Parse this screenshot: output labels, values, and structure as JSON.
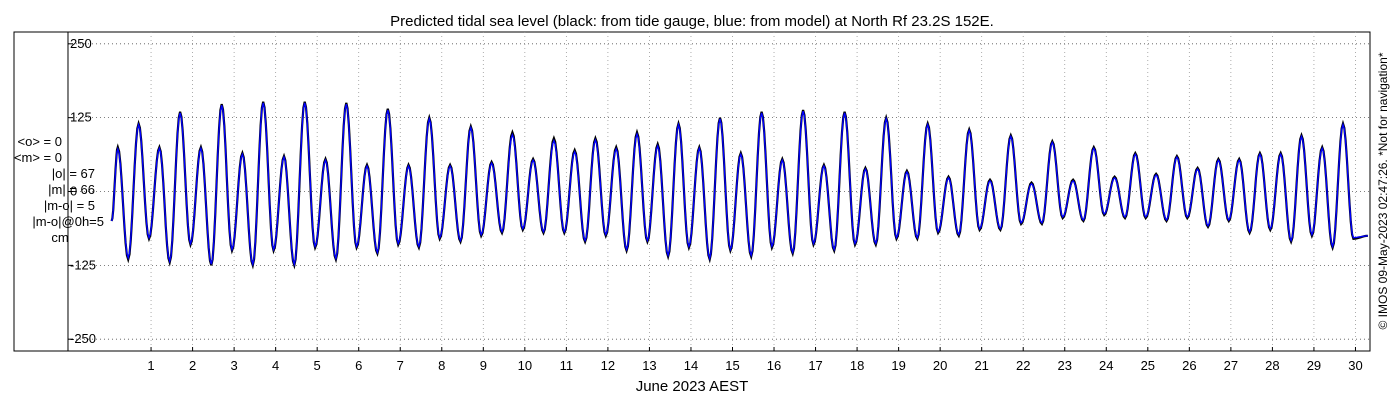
{
  "chart_data": {
    "type": "line",
    "title": "Predicted tidal sea level (black: from tide gauge, blue: from model) at North Rf 23.2S 152E.",
    "xlabel": "June 2023 AEST",
    "ylabel": "",
    "x_ticks": [
      1,
      2,
      3,
      4,
      5,
      6,
      7,
      8,
      9,
      10,
      11,
      12,
      13,
      14,
      15,
      16,
      17,
      18,
      19,
      20,
      21,
      22,
      23,
      24,
      25,
      26,
      27,
      28,
      29,
      30
    ],
    "xlim": [
      -2.3,
      30.35
    ],
    "y_ticks": [
      250,
      125,
      0,
      -125,
      -250
    ],
    "ylim": [
      -270,
      270
    ],
    "grid": "dotted",
    "series": [
      {
        "name": "black: from tide gauge",
        "color": "#000000",
        "extrema": [
          [
            0.2,
            75
          ],
          [
            0.45,
            -115
          ],
          [
            0.7,
            115
          ],
          [
            0.95,
            -80
          ],
          [
            1.2,
            75
          ],
          [
            1.45,
            -120
          ],
          [
            1.7,
            135
          ],
          [
            1.95,
            -90
          ],
          [
            2.2,
            75
          ],
          [
            2.45,
            -125
          ],
          [
            2.7,
            148
          ],
          [
            2.95,
            -100
          ],
          [
            3.2,
            65
          ],
          [
            3.45,
            -125
          ],
          [
            3.7,
            152
          ],
          [
            3.95,
            -100
          ],
          [
            4.2,
            60
          ],
          [
            4.45,
            -125
          ],
          [
            4.7,
            152
          ],
          [
            4.95,
            -95
          ],
          [
            5.2,
            55
          ],
          [
            5.45,
            -115
          ],
          [
            5.7,
            150
          ],
          [
            5.95,
            -95
          ],
          [
            6.2,
            45
          ],
          [
            6.45,
            -105
          ],
          [
            6.7,
            140
          ],
          [
            6.95,
            -90
          ],
          [
            7.2,
            45
          ],
          [
            7.45,
            -95
          ],
          [
            7.7,
            125
          ],
          [
            7.95,
            -80
          ],
          [
            8.2,
            45
          ],
          [
            8.45,
            -85
          ],
          [
            8.7,
            110
          ],
          [
            8.95,
            -75
          ],
          [
            9.2,
            50
          ],
          [
            9.45,
            -70
          ],
          [
            9.7,
            100
          ],
          [
            9.95,
            -65
          ],
          [
            10.2,
            55
          ],
          [
            10.45,
            -70
          ],
          [
            10.7,
            90
          ],
          [
            10.95,
            -70
          ],
          [
            11.2,
            70
          ],
          [
            11.45,
            -85
          ],
          [
            11.7,
            90
          ],
          [
            11.95,
            -75
          ],
          [
            12.2,
            75
          ],
          [
            12.45,
            -100
          ],
          [
            12.7,
            100
          ],
          [
            12.95,
            -85
          ],
          [
            13.2,
            80
          ],
          [
            13.45,
            -110
          ],
          [
            13.7,
            115
          ],
          [
            13.95,
            -95
          ],
          [
            14.2,
            75
          ],
          [
            14.45,
            -115
          ],
          [
            14.7,
            125
          ],
          [
            14.95,
            -100
          ],
          [
            15.2,
            65
          ],
          [
            15.45,
            -110
          ],
          [
            15.7,
            135
          ],
          [
            15.95,
            -95
          ],
          [
            16.2,
            55
          ],
          [
            16.45,
            -105
          ],
          [
            16.7,
            138
          ],
          [
            16.95,
            -90
          ],
          [
            17.2,
            45
          ],
          [
            17.45,
            -100
          ],
          [
            17.7,
            135
          ],
          [
            17.95,
            -90
          ],
          [
            18.2,
            40
          ],
          [
            18.45,
            -90
          ],
          [
            18.7,
            125
          ],
          [
            18.95,
            -80
          ],
          [
            19.2,
            35
          ],
          [
            19.45,
            -80
          ],
          [
            19.7,
            115
          ],
          [
            19.95,
            -70
          ],
          [
            20.2,
            25
          ],
          [
            20.45,
            -75
          ],
          [
            20.7,
            105
          ],
          [
            20.95,
            -65
          ],
          [
            21.2,
            20
          ],
          [
            21.45,
            -65
          ],
          [
            21.7,
            95
          ],
          [
            21.95,
            -55
          ],
          [
            22.2,
            15
          ],
          [
            22.45,
            -55
          ],
          [
            22.7,
            85
          ],
          [
            22.95,
            -45
          ],
          [
            23.2,
            20
          ],
          [
            23.45,
            -50
          ],
          [
            23.7,
            75
          ],
          [
            23.95,
            -40
          ],
          [
            24.2,
            25
          ],
          [
            24.45,
            -45
          ],
          [
            24.7,
            65
          ],
          [
            24.95,
            -45
          ],
          [
            25.2,
            30
          ],
          [
            25.45,
            -50
          ],
          [
            25.7,
            60
          ],
          [
            25.95,
            -45
          ],
          [
            26.2,
            40
          ],
          [
            26.45,
            -60
          ],
          [
            26.7,
            55
          ],
          [
            26.95,
            -50
          ],
          [
            27.2,
            55
          ],
          [
            27.45,
            -70
          ],
          [
            27.7,
            65
          ],
          [
            27.95,
            -65
          ],
          [
            28.2,
            65
          ],
          [
            28.45,
            -85
          ],
          [
            28.7,
            95
          ],
          [
            28.95,
            -75
          ],
          [
            29.2,
            75
          ],
          [
            29.45,
            -95
          ],
          [
            29.7,
            115
          ],
          [
            29.95,
            -80
          ]
        ]
      },
      {
        "name": "blue: from model",
        "color": "#0000ff",
        "extrema": [
          [
            0.2,
            72
          ],
          [
            0.45,
            -112
          ],
          [
            0.7,
            113
          ],
          [
            0.95,
            -78
          ],
          [
            1.2,
            73
          ],
          [
            1.45,
            -118
          ],
          [
            1.7,
            133
          ],
          [
            1.95,
            -88
          ],
          [
            2.2,
            73
          ],
          [
            2.45,
            -123
          ],
          [
            2.7,
            146
          ],
          [
            2.95,
            -98
          ],
          [
            3.2,
            63
          ],
          [
            3.45,
            -123
          ],
          [
            3.7,
            150
          ],
          [
            3.95,
            -98
          ],
          [
            4.2,
            58
          ],
          [
            4.45,
            -123
          ],
          [
            4.7,
            150
          ],
          [
            4.95,
            -93
          ],
          [
            5.2,
            53
          ],
          [
            5.45,
            -113
          ],
          [
            5.7,
            148
          ],
          [
            5.95,
            -93
          ],
          [
            6.2,
            43
          ],
          [
            6.45,
            -103
          ],
          [
            6.7,
            138
          ],
          [
            6.95,
            -88
          ],
          [
            7.2,
            43
          ],
          [
            7.45,
            -93
          ],
          [
            7.7,
            123
          ],
          [
            7.95,
            -78
          ],
          [
            8.2,
            43
          ],
          [
            8.45,
            -83
          ],
          [
            8.7,
            108
          ],
          [
            8.95,
            -73
          ],
          [
            9.2,
            48
          ],
          [
            9.45,
            -68
          ],
          [
            9.7,
            96
          ],
          [
            9.95,
            -63
          ],
          [
            10.2,
            53
          ],
          [
            10.45,
            -68
          ],
          [
            10.7,
            86
          ],
          [
            10.95,
            -68
          ],
          [
            11.2,
            67
          ],
          [
            11.45,
            -83
          ],
          [
            11.7,
            87
          ],
          [
            11.95,
            -73
          ],
          [
            12.2,
            72
          ],
          [
            12.45,
            -98
          ],
          [
            12.7,
            97
          ],
          [
            12.95,
            -83
          ],
          [
            13.2,
            77
          ],
          [
            13.45,
            -108
          ],
          [
            13.7,
            113
          ],
          [
            13.95,
            -93
          ],
          [
            14.2,
            73
          ],
          [
            14.45,
            -113
          ],
          [
            14.7,
            123
          ],
          [
            14.95,
            -98
          ],
          [
            15.2,
            63
          ],
          [
            15.45,
            -108
          ],
          [
            15.7,
            133
          ],
          [
            15.95,
            -93
          ],
          [
            16.2,
            53
          ],
          [
            16.45,
            -103
          ],
          [
            16.7,
            136
          ],
          [
            16.95,
            -88
          ],
          [
            17.2,
            43
          ],
          [
            17.45,
            -98
          ],
          [
            17.7,
            133
          ],
          [
            17.95,
            -88
          ],
          [
            18.2,
            38
          ],
          [
            18.45,
            -88
          ],
          [
            18.7,
            123
          ],
          [
            18.95,
            -78
          ],
          [
            19.2,
            33
          ],
          [
            19.45,
            -78
          ],
          [
            19.7,
            113
          ],
          [
            19.95,
            -68
          ],
          [
            20.2,
            23
          ],
          [
            20.45,
            -73
          ],
          [
            20.7,
            103
          ],
          [
            20.95,
            -63
          ],
          [
            21.2,
            18
          ],
          [
            21.45,
            -63
          ],
          [
            21.7,
            93
          ],
          [
            21.95,
            -53
          ],
          [
            22.2,
            13
          ],
          [
            22.45,
            -53
          ],
          [
            22.7,
            83
          ],
          [
            22.95,
            -43
          ],
          [
            23.2,
            18
          ],
          [
            23.45,
            -48
          ],
          [
            23.7,
            73
          ],
          [
            23.95,
            -38
          ],
          [
            24.2,
            23
          ],
          [
            24.45,
            -43
          ],
          [
            24.7,
            63
          ],
          [
            24.95,
            -43
          ],
          [
            25.2,
            28
          ],
          [
            25.45,
            -48
          ],
          [
            25.7,
            58
          ],
          [
            25.95,
            -43
          ],
          [
            26.2,
            38
          ],
          [
            26.45,
            -58
          ],
          [
            26.7,
            53
          ],
          [
            26.95,
            -48
          ],
          [
            27.2,
            53
          ],
          [
            27.45,
            -68
          ],
          [
            27.7,
            63
          ],
          [
            27.95,
            -63
          ],
          [
            28.2,
            63
          ],
          [
            28.45,
            -83
          ],
          [
            28.7,
            93
          ],
          [
            28.95,
            -73
          ],
          [
            29.2,
            73
          ],
          [
            29.45,
            -93
          ],
          [
            29.7,
            113
          ],
          [
            29.95,
            -78
          ]
        ]
      }
    ],
    "start": [
      0.05,
      -50
    ],
    "end": [
      30.3,
      -75
    ]
  },
  "stats": {
    "mean_obs": "<o> = 0",
    "mean_model": "<m> = 0",
    "abs_obs": "|o| = 67",
    "abs_model": "|m| = 66",
    "abs_diff": "|m-o| = 5",
    "abs_diff_0h": "|m-o|@0h=5",
    "unit": "cm"
  },
  "credit": "© IMOS 09-May-2023 02:47:26. *Not for navigation*"
}
